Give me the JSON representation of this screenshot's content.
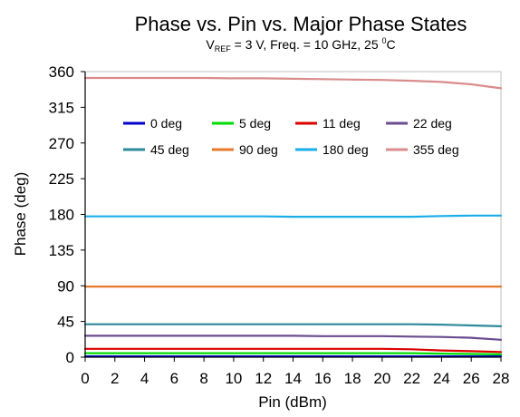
{
  "chart_data": {
    "type": "line",
    "title": "Phase vs. Pin vs. Major Phase States",
    "subtitle": {
      "prefix": "V",
      "prefix_sub": "REF",
      "middle": " = 3 V, Freq. = 10 GHz, 25 ",
      "sup": "0",
      "suffix": "C"
    },
    "xlabel": "Pin (dBm)",
    "ylabel": "Phase (deg)",
    "xlim": [
      0,
      28
    ],
    "ylim": [
      0,
      360
    ],
    "x_ticks": [
      0,
      2,
      4,
      6,
      8,
      10,
      12,
      14,
      16,
      18,
      20,
      22,
      24,
      26,
      28
    ],
    "y_ticks": [
      0,
      45,
      90,
      135,
      180,
      225,
      270,
      315,
      360
    ],
    "grid": false,
    "legend_position": "top-inside",
    "x": [
      0,
      2,
      4,
      6,
      8,
      10,
      12,
      14,
      16,
      18,
      20,
      22,
      24,
      26,
      28
    ],
    "series": [
      {
        "name": "0 deg",
        "color": "#0000cc",
        "values": [
          1,
          1,
          1,
          1,
          1,
          1,
          1,
          1,
          1,
          1,
          1,
          1,
          1,
          1,
          1
        ]
      },
      {
        "name": "5 deg",
        "color": "#00dd00",
        "values": [
          5,
          5,
          5,
          5,
          5,
          5,
          5,
          5,
          5,
          5,
          5,
          5,
          4.5,
          4,
          3.5
        ]
      },
      {
        "name": "11 deg",
        "color": "#dd0000",
        "values": [
          10.5,
          10.5,
          10.5,
          10.5,
          10.5,
          10.5,
          10.5,
          10.5,
          10.5,
          10.5,
          10.5,
          10,
          8.5,
          7.5,
          6.5
        ]
      },
      {
        "name": "22 deg",
        "color": "#6a4c8f",
        "values": [
          27,
          27,
          27,
          27,
          27,
          27,
          27,
          27,
          26.5,
          26.5,
          26.5,
          26,
          25.5,
          24.5,
          22
        ]
      },
      {
        "name": "45 deg",
        "color": "#2e8b9a",
        "values": [
          41.5,
          41.5,
          41.5,
          41.5,
          41.5,
          41.5,
          41.5,
          41.5,
          41.5,
          41.5,
          41.5,
          41.5,
          41,
          40,
          39
        ]
      },
      {
        "name": "90 deg",
        "color": "#e8782a",
        "values": [
          89,
          89,
          89,
          89,
          89,
          89,
          89,
          89,
          89,
          89,
          89,
          89,
          89,
          89,
          89
        ]
      },
      {
        "name": "180 deg",
        "color": "#1aaee8",
        "values": [
          177.5,
          177.5,
          177.5,
          177.5,
          177.5,
          177.5,
          177.5,
          177,
          177,
          177,
          177,
          177,
          178,
          178.5,
          178.5
        ]
      },
      {
        "name": "355 deg",
        "color": "#d98c8c",
        "values": [
          352,
          352,
          352,
          352,
          352,
          351.5,
          351.5,
          351,
          350.5,
          350,
          349.5,
          348.5,
          347,
          344,
          339
        ]
      }
    ]
  }
}
